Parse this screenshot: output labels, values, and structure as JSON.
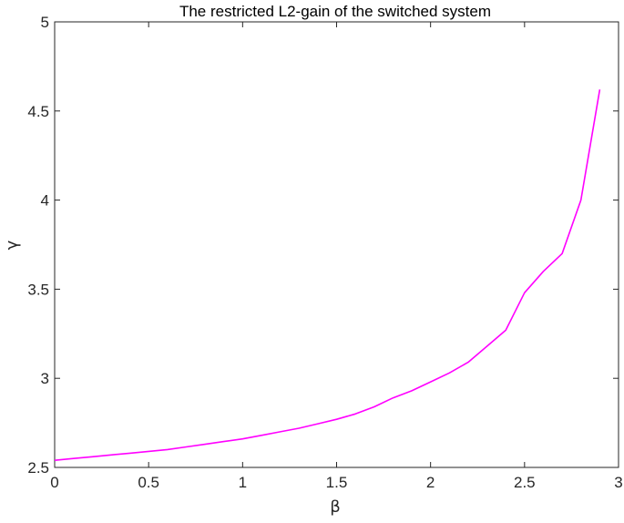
{
  "chart_data": {
    "type": "line",
    "title": "The restricted L2-gain of the switched system",
    "xlabel": "β",
    "ylabel": "γ",
    "xlim": [
      0,
      3
    ],
    "ylim": [
      2.5,
      5
    ],
    "xticks": [
      "0",
      "0.5",
      "1",
      "1.5",
      "2",
      "2.5",
      "3"
    ],
    "yticks": [
      "2.5",
      "3",
      "3.5",
      "4",
      "4.5",
      "5"
    ],
    "grid": false,
    "series": [
      {
        "color": "#ff00ff",
        "x": [
          0,
          0.1,
          0.2,
          0.3,
          0.4,
          0.5,
          0.6,
          0.7,
          0.8,
          0.9,
          1.0,
          1.1,
          1.2,
          1.3,
          1.4,
          1.5,
          1.6,
          1.7,
          1.8,
          1.9,
          2.0,
          2.1,
          2.2,
          2.3,
          2.4,
          2.5,
          2.6,
          2.7,
          2.8,
          2.9
        ],
        "y": [
          2.54,
          2.55,
          2.56,
          2.57,
          2.58,
          2.59,
          2.6,
          2.615,
          2.63,
          2.645,
          2.66,
          2.68,
          2.7,
          2.72,
          2.745,
          2.77,
          2.8,
          2.84,
          2.89,
          2.93,
          2.98,
          3.03,
          3.09,
          3.18,
          3.27,
          3.48,
          3.6,
          3.7,
          4.0,
          4.62
        ]
      }
    ]
  }
}
